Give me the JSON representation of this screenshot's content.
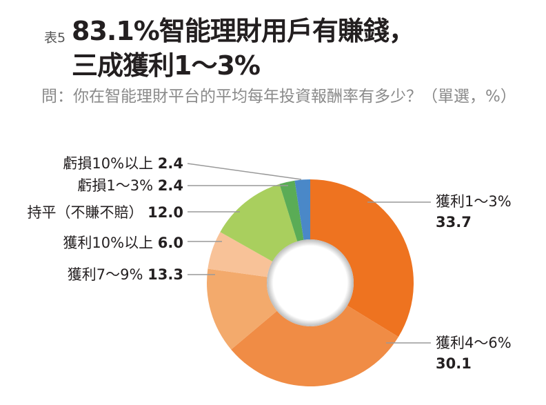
{
  "header": {
    "tag": "表5",
    "title_line1": "83.1%智能理財用戶有賺錢，",
    "title_line2": "三成獲利1～3%",
    "subtitle": "問：你在智能理財平台的平均每年投資報酬率有多少？（單選，%）"
  },
  "chart_data": {
    "type": "pie",
    "donut": true,
    "unit": "%",
    "start": "top, clockwise",
    "categories": [
      "獲利1～3%",
      "獲利4～6%",
      "獲利7～9%",
      "獲利10%以上",
      "持平（不賺不賠）",
      "虧損1～3%",
      "虧損10%以上"
    ],
    "values": [
      33.7,
      30.1,
      13.3,
      6.0,
      12.0,
      2.4,
      2.4
    ],
    "value_labels": [
      "33.7",
      "30.1",
      "13.3",
      "6.0",
      "12.0",
      "2.4",
      "2.4"
    ],
    "colors": [
      "#ee7320",
      "#f08c45",
      "#f3aa6c",
      "#f8c298",
      "#a9cf5e",
      "#5aac56",
      "#4a88c8"
    ]
  }
}
